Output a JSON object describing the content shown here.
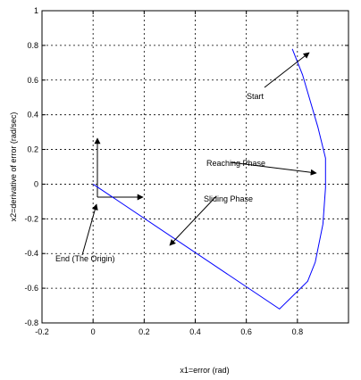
{
  "chart_data": {
    "type": "line",
    "title": "",
    "xlabel": "x1=error (rad)",
    "ylabel": "x2=derivative of error (rad/sec)",
    "xlim": [
      -0.2,
      1.0
    ],
    "ylim": [
      -0.8,
      1.0
    ],
    "x_ticks": [
      "-0.2",
      "0",
      "0.2",
      "0.4",
      "0.6",
      "0.8"
    ],
    "y_ticks": [
      "-0.8",
      "-0.6",
      "-0.4",
      "-0.2",
      "0",
      "0.2",
      "0.4",
      "0.6",
      "0.8",
      "1"
    ],
    "grid": true,
    "series": [
      {
        "color": "#0000ff",
        "points": [
          [
            0.78,
            0.78
          ],
          [
            0.82,
            0.63
          ],
          [
            0.88,
            0.33
          ],
          [
            0.91,
            0.15
          ],
          [
            0.91,
            0.1
          ],
          [
            0.91,
            -0.02
          ],
          [
            0.9,
            -0.23
          ],
          [
            0.87,
            -0.45
          ],
          [
            0.84,
            -0.56
          ],
          [
            0.73,
            -0.72
          ],
          [
            0.0,
            0.0
          ]
        ]
      }
    ],
    "annotations": [
      {
        "text": "Start",
        "arrow_to": [
          0.78,
          0.77
        ]
      },
      {
        "text": "Reaching Phase",
        "arrow_to": [
          0.91,
          0.13
        ]
      },
      {
        "text": "Sliding Phase",
        "arrow_to": [
          0.27,
          -0.26
        ]
      },
      {
        "text": "End (The Origin)",
        "arrow_to": [
          0.0,
          -0.04
        ]
      }
    ]
  }
}
